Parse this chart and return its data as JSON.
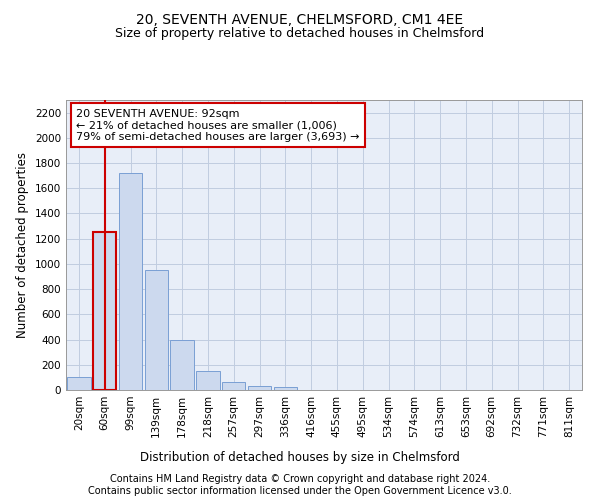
{
  "title": "20, SEVENTH AVENUE, CHELMSFORD, CM1 4EE",
  "subtitle": "Size of property relative to detached houses in Chelmsford",
  "xlabel": "Distribution of detached houses by size in Chelmsford",
  "ylabel": "Number of detached properties",
  "categories": [
    "20sqm",
    "60sqm",
    "99sqm",
    "139sqm",
    "178sqm",
    "218sqm",
    "257sqm",
    "297sqm",
    "336sqm",
    "416sqm",
    "455sqm",
    "495sqm",
    "534sqm",
    "574sqm",
    "613sqm",
    "653sqm",
    "692sqm",
    "732sqm",
    "771sqm",
    "811sqm"
  ],
  "values": [
    100,
    1250,
    1720,
    950,
    400,
    150,
    60,
    30,
    20,
    0,
    0,
    0,
    0,
    0,
    0,
    0,
    0,
    0,
    0,
    0
  ],
  "bar_color": "#ccd9ee",
  "bar_edge_color": "#7a9fd4",
  "highlight_bar_edge_color": "#cc0000",
  "highlight_bar_index": 1,
  "annotation_box_text": "20 SEVENTH AVENUE: 92sqm\n← 21% of detached houses are smaller (1,006)\n79% of semi-detached houses are larger (3,693) →",
  "ylim": [
    0,
    2300
  ],
  "yticks": [
    0,
    200,
    400,
    600,
    800,
    1000,
    1200,
    1400,
    1600,
    1800,
    2000,
    2200
  ],
  "footer1": "Contains HM Land Registry data © Crown copyright and database right 2024.",
  "footer2": "Contains public sector information licensed under the Open Government Licence v3.0.",
  "bg_color": "#ffffff",
  "plot_bg_color": "#e8eef8",
  "grid_color": "#c0cce0",
  "title_fontsize": 10,
  "subtitle_fontsize": 9,
  "axis_label_fontsize": 8.5,
  "tick_fontsize": 7.5,
  "annotation_fontsize": 8,
  "footer_fontsize": 7
}
